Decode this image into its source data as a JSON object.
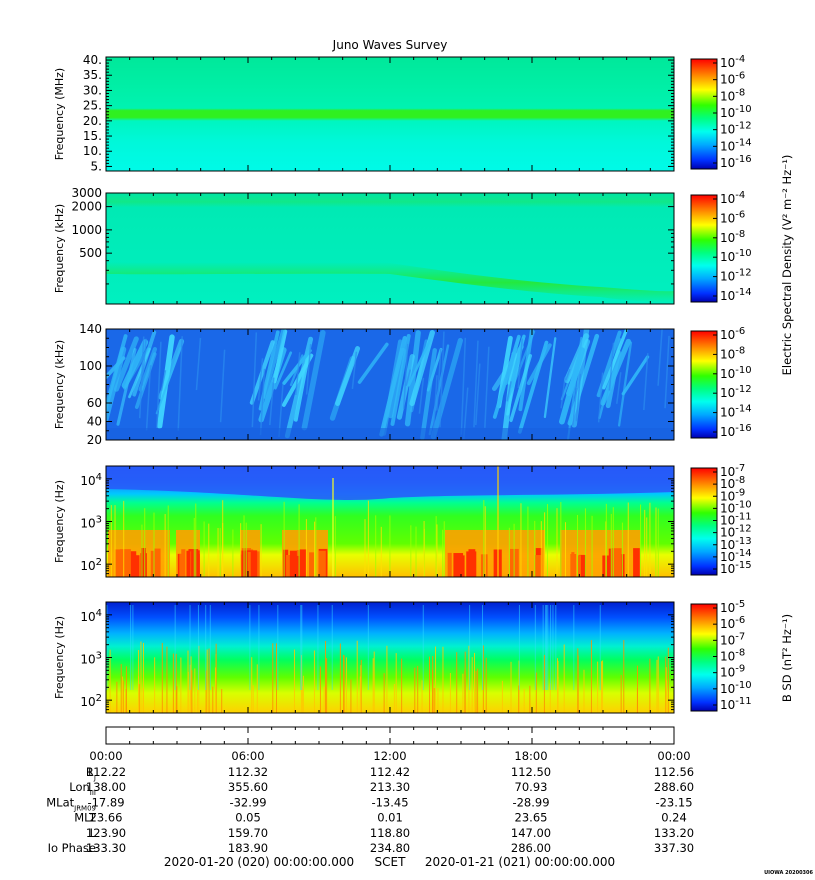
{
  "title": "Juno Waves Survey",
  "stamp": "UIOWA 20200306",
  "panels": [
    {
      "ylabel": "Frequency (MHz)",
      "scale": "linear",
      "yrange": [
        3.5,
        41
      ],
      "yticks": [
        {
          "v": 5,
          "label": "5."
        },
        {
          "v": 10,
          "label": "10."
        },
        {
          "v": 15,
          "label": "15."
        },
        {
          "v": 20,
          "label": "20."
        },
        {
          "v": 25,
          "label": "25."
        },
        {
          "v": 30,
          "label": "30."
        },
        {
          "v": 35,
          "label": "35."
        },
        {
          "v": 40,
          "label": "40."
        }
      ],
      "minor_ticks": [
        6,
        7,
        8,
        9,
        11,
        12,
        13,
        14,
        16,
        17,
        18,
        19,
        21,
        22,
        23,
        24,
        26,
        27,
        28,
        29,
        31,
        32,
        33,
        34,
        36,
        37,
        38,
        39
      ],
      "colorbar": {
        "labels": [
          {
            "base": "10",
            "exp": "-4"
          },
          {
            "base": "10",
            "exp": "-6"
          },
          {
            "base": "10",
            "exp": "-8"
          },
          {
            "base": "10",
            "exp": "-10"
          },
          {
            "base": "10",
            "exp": "-12"
          },
          {
            "base": "10",
            "exp": "-14"
          },
          {
            "base": "10",
            "exp": "-16"
          }
        ]
      }
    },
    {
      "ylabel": "Frequency (kHz)",
      "scale": "log",
      "yrange": [
        110,
        3000
      ],
      "yticks": [
        {
          "v": 500,
          "label": "500"
        },
        {
          "v": 1000,
          "label": "1000"
        },
        {
          "v": 2000,
          "label": "2000"
        },
        {
          "v": 3000,
          "label": "3000"
        }
      ],
      "minor_ticks": [
        200,
        300,
        400,
        600,
        700,
        800,
        900
      ],
      "colorbar": {
        "labels": [
          {
            "base": "10",
            "exp": "-4"
          },
          {
            "base": "10",
            "exp": "-6"
          },
          {
            "base": "10",
            "exp": "-8"
          },
          {
            "base": "10",
            "exp": "-10"
          },
          {
            "base": "10",
            "exp": "-12"
          },
          {
            "base": "10",
            "exp": "-14"
          }
        ]
      }
    },
    {
      "ylabel": "Frequency (kHz)",
      "scale": "linear",
      "yrange": [
        20,
        140
      ],
      "yticks": [
        {
          "v": 20,
          "label": "20"
        },
        {
          "v": 40,
          "label": "40"
        },
        {
          "v": 60,
          "label": "60"
        },
        {
          "v": 100,
          "label": "100"
        },
        {
          "v": 140,
          "label": "140"
        }
      ],
      "minor_ticks": [
        30,
        50,
        70,
        80,
        90,
        110,
        120,
        130
      ],
      "colorbar": {
        "labels": [
          {
            "base": "10",
            "exp": "-6"
          },
          {
            "base": "10",
            "exp": "-8"
          },
          {
            "base": "10",
            "exp": "-10"
          },
          {
            "base": "10",
            "exp": "-12"
          },
          {
            "base": "10",
            "exp": "-14"
          },
          {
            "base": "10",
            "exp": "-16"
          }
        ]
      }
    },
    {
      "ylabel": "Frequency (Hz)",
      "scale": "log",
      "yrange": [
        50,
        20000
      ],
      "yticks": [
        {
          "v": 100,
          "base": "10",
          "exp": "2"
        },
        {
          "v": 1000,
          "base": "10",
          "exp": "3"
        },
        {
          "v": 10000,
          "base": "10",
          "exp": "4"
        }
      ],
      "minor_ticks": [
        60,
        70,
        80,
        90,
        200,
        300,
        400,
        500,
        600,
        700,
        800,
        900,
        2000,
        3000,
        4000,
        5000,
        6000,
        7000,
        8000,
        9000
      ],
      "colorbar": {
        "labels": [
          {
            "base": "10",
            "exp": "-7"
          },
          {
            "base": "10",
            "exp": "-8"
          },
          {
            "base": "10",
            "exp": "-9"
          },
          {
            "base": "10",
            "exp": "-10"
          },
          {
            "base": "10",
            "exp": "-11"
          },
          {
            "base": "10",
            "exp": "-12"
          },
          {
            "base": "10",
            "exp": "-13"
          },
          {
            "base": "10",
            "exp": "-14"
          },
          {
            "base": "10",
            "exp": "-15"
          }
        ]
      }
    },
    {
      "ylabel": "Frequency (Hz)",
      "scale": "log",
      "yrange": [
        50,
        20000
      ],
      "yticks": [
        {
          "v": 100,
          "base": "10",
          "exp": "2"
        },
        {
          "v": 1000,
          "base": "10",
          "exp": "3"
        },
        {
          "v": 10000,
          "base": "10",
          "exp": "4"
        }
      ],
      "minor_ticks": [
        60,
        70,
        80,
        90,
        200,
        300,
        400,
        500,
        600,
        700,
        800,
        900,
        2000,
        3000,
        4000,
        5000,
        6000,
        7000,
        8000,
        9000
      ],
      "colorbar": {
        "labels": [
          {
            "base": "10",
            "exp": "-5"
          },
          {
            "base": "10",
            "exp": "-6"
          },
          {
            "base": "10",
            "exp": "-7"
          },
          {
            "base": "10",
            "exp": "-8"
          },
          {
            "base": "10",
            "exp": "-9"
          },
          {
            "base": "10",
            "exp": "-10"
          },
          {
            "base": "10",
            "exp": "-11"
          }
        ]
      }
    }
  ],
  "colorbar_titles": {
    "electric": "Electric Spectral Density (V² m⁻² Hz⁻¹)",
    "magnetic": "B SD (nT² Hz⁻¹)"
  },
  "chart_data": {
    "type": "heatmap",
    "title": "Juno Waves Survey",
    "x_start": "2020-01-20 (020) 00:00:00.000",
    "x_end": "2020-01-21 (021) 00:00:00.000",
    "x_label": "SCET",
    "x_tick_labels": [
      "00:00",
      "06:00",
      "12:00",
      "18:00",
      "00:00"
    ],
    "ephemeris": [
      {
        "label": "R",
        "sub": "J",
        "values": [
          "112.22",
          "112.32",
          "112.42",
          "112.50",
          "112.56"
        ]
      },
      {
        "label": "Lon",
        "sub": "III",
        "values": [
          "138.00",
          "355.60",
          "213.30",
          "70.93",
          "288.60"
        ]
      },
      {
        "label": "MLat",
        "sub": "JRM09",
        "values": [
          "-17.89",
          "-32.99",
          "-13.45",
          "-28.99",
          "-23.15"
        ]
      },
      {
        "label": "MLT",
        "sub": "",
        "values": [
          "23.66",
          "0.05",
          "0.01",
          "23.65",
          "0.24"
        ]
      },
      {
        "label": "L",
        "sub": "",
        "values": [
          "123.90",
          "159.70",
          "118.80",
          "147.00",
          "133.20"
        ]
      },
      {
        "label": "Io Phase",
        "sub": "",
        "values": [
          "133.30",
          "183.90",
          "234.80",
          "286.00",
          "337.30"
        ]
      }
    ],
    "panels": [
      {
        "ylabel": "Frequency (MHz)",
        "scale": "linear",
        "ylim": [
          3.5,
          41
        ],
        "colorbar_range": [
          -16.5,
          -3.5
        ],
        "colorbar_title": "Electric Spectral Density"
      },
      {
        "ylabel": "Frequency (kHz)",
        "scale": "log",
        "ylim": [
          110,
          3000
        ],
        "colorbar_range": [
          -15,
          -3.5
        ],
        "colorbar_title": "Electric Spectral Density"
      },
      {
        "ylabel": "Frequency (kHz)",
        "scale": "linear",
        "ylim": [
          20,
          140
        ],
        "colorbar_range": [
          -16.5,
          -5.5
        ],
        "colorbar_title": "Electric Spectral Density"
      },
      {
        "ylabel": "Frequency (Hz)",
        "scale": "log",
        "ylim": [
          50,
          20000
        ],
        "colorbar_range": [
          -15,
          -7
        ],
        "colorbar_title": "Electric Spectral Density"
      },
      {
        "ylabel": "Frequency (Hz)",
        "scale": "log",
        "ylim": [
          50,
          20000
        ],
        "colorbar_range": [
          -11,
          -4.5
        ],
        "colorbar_title": "B SD"
      }
    ]
  }
}
